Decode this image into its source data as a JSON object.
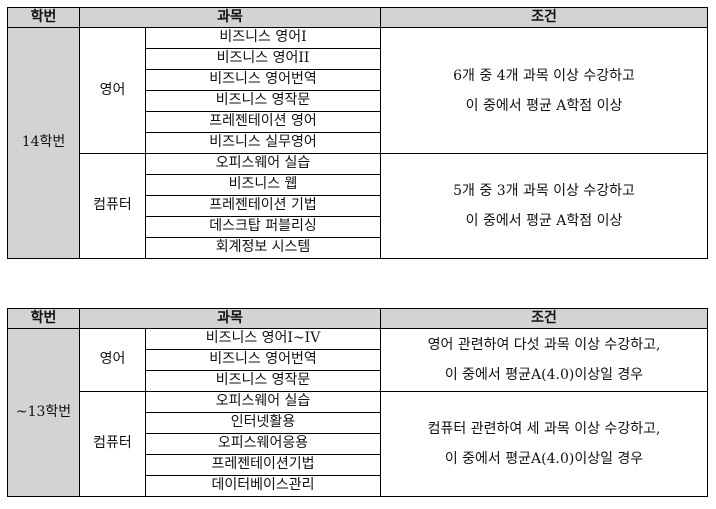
{
  "tables": [
    {
      "headers": [
        "학번",
        "과목",
        "조건"
      ],
      "year": "14학번",
      "groups": [
        {
          "category": "영어",
          "subjects": [
            "비즈니스 영어I",
            "비즈니스 영어II",
            "비즈니스 영어번역",
            "비즈니스 영작문",
            "프레젠테이션 영어",
            "비즈니스 실무영어"
          ],
          "condition": [
            "6개 중 4개 과목 이상 수강하고",
            "이 중에서 평균  A학점 이상"
          ]
        },
        {
          "category": "컴퓨터",
          "subjects": [
            "오피스웨어 실습",
            "비즈니스 웹",
            "프레젠테이션 기법",
            "데스크탑 퍼블리싱",
            "회계정보 시스템"
          ],
          "condition": [
            "5개 중 3개 과목 이상 수강하고",
            "이 중에서 평균 A학점 이상"
          ]
        }
      ]
    },
    {
      "headers": [
        "학번",
        "과목",
        "조건"
      ],
      "year": "~13학번",
      "groups": [
        {
          "category": "영어",
          "subjects": [
            "비즈니스 영어I~IV",
            "비즈니스 영어번역",
            "비즈니스 영작문"
          ],
          "condition": [
            "영어 관련하여 다섯 과목 이상 수강하고,",
            "이 중에서 평균A(4.0)이상일 경우"
          ]
        },
        {
          "category": "컴퓨터",
          "subjects": [
            "오피스웨어 실습",
            "인터넷활용",
            "오피스웨어응용",
            "프레젠테이션기법",
            "데이터베이스관리"
          ],
          "condition": [
            "컴퓨터 관련하여 세 과목 이상 수강하고,",
            "이 중에서 평균A(4.0)이상일 경우"
          ]
        }
      ]
    }
  ]
}
